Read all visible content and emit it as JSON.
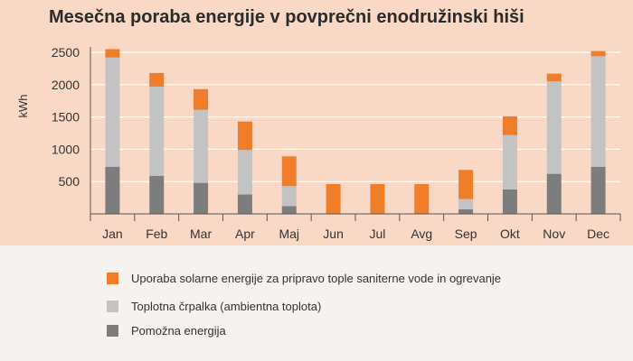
{
  "chart_data": {
    "type": "bar",
    "stacked": true,
    "title": "Mesečna poraba energije v povprečni enodružinski hiši",
    "ylabel": "kWh",
    "xlabel": "",
    "ylim": [
      0,
      2500
    ],
    "yticks": [
      500,
      1000,
      1500,
      2000,
      2500
    ],
    "grid": true,
    "legend_position": "bottom",
    "categories": [
      "Jan",
      "Feb",
      "Mar",
      "Apr",
      "Maj",
      "Jun",
      "Jul",
      "Avg",
      "Sep",
      "Okt",
      "Nov",
      "Dec"
    ],
    "series": [
      {
        "name": "Pomožna energija",
        "color": "#7d7d7d",
        "values": [
          730,
          590,
          480,
          300,
          120,
          0,
          0,
          0,
          70,
          380,
          620,
          730
        ]
      },
      {
        "name": "Toplotna črpalka (ambientna toplota)",
        "color": "#c3c3c3",
        "values": [
          1690,
          1380,
          1130,
          690,
          310,
          0,
          0,
          0,
          160,
          840,
          1430,
          1710
        ]
      },
      {
        "name": "Uporaba solarne energije za pripravo tople saniterne vode in ogrevanje",
        "color": "#f07d2a",
        "values": [
          130,
          210,
          320,
          440,
          460,
          460,
          460,
          460,
          450,
          290,
          120,
          80
        ]
      }
    ]
  }
}
